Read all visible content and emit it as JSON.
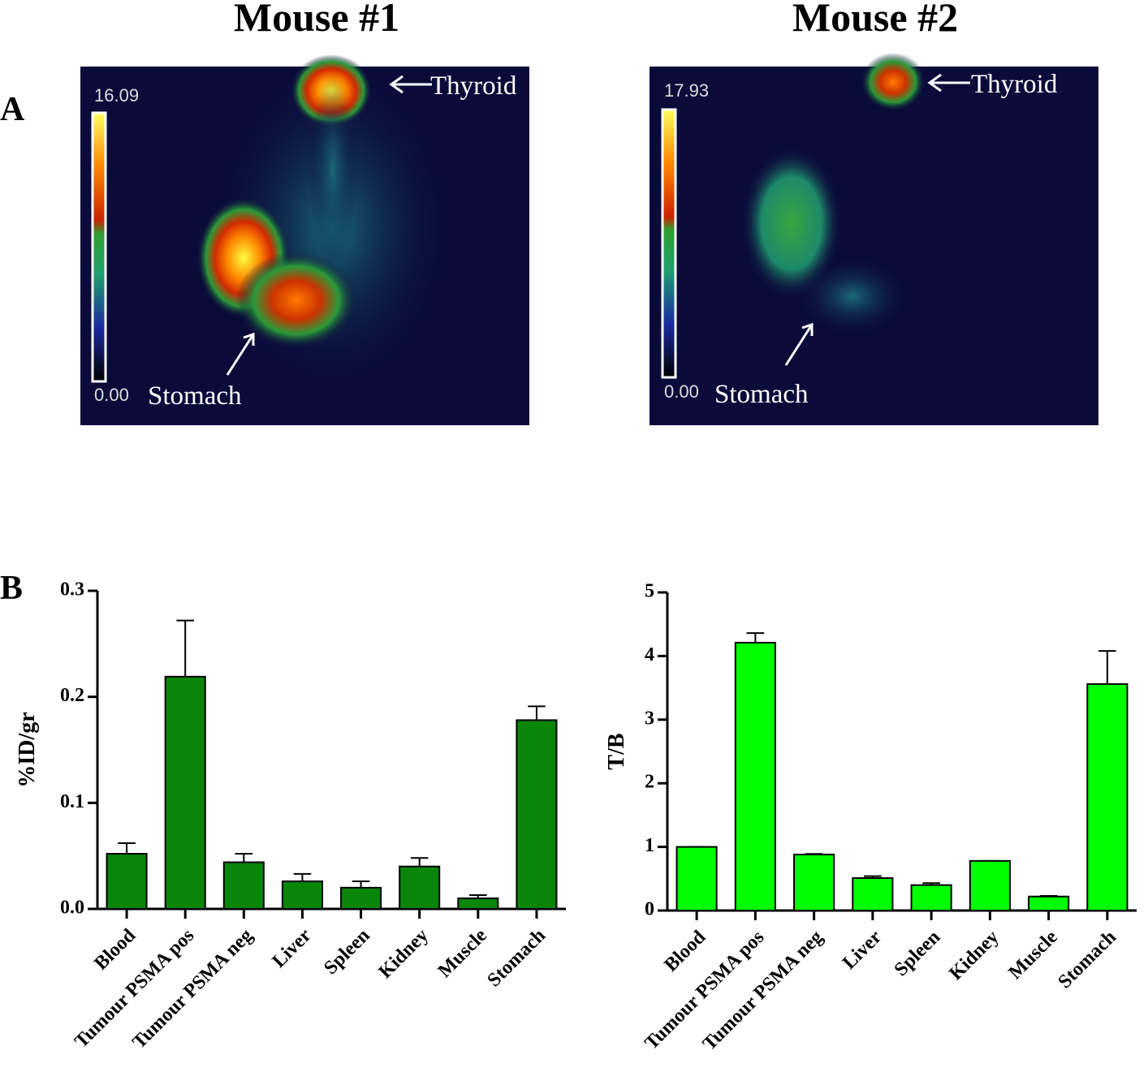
{
  "panel_a": {
    "label": "A",
    "images": [
      {
        "title": "Mouse #1",
        "scale_max": "16.09",
        "scale_min": "0.00",
        "organs": [
          "Thyroid",
          "Stomach"
        ]
      },
      {
        "title": "Mouse #2",
        "scale_max": "17.93",
        "scale_min": "0.00",
        "organs": [
          "Thyroid",
          "Stomach"
        ]
      }
    ]
  },
  "panel_b": {
    "label": "B"
  },
  "chart_data": [
    {
      "type": "bar",
      "ylabel": "%ID/gr",
      "categories": [
        "Blood",
        "Tumour PSMA pos",
        "Tumour PSMA neg",
        "Liver",
        "Spleen",
        "Kidney",
        "Muscle",
        "Stomach"
      ],
      "values": [
        0.052,
        0.219,
        0.044,
        0.026,
        0.02,
        0.04,
        0.01,
        0.178
      ],
      "errors": [
        0.01,
        0.053,
        0.008,
        0.007,
        0.006,
        0.008,
        0.003,
        0.013
      ],
      "color": "#098509",
      "ylim": [
        0,
        0.3
      ],
      "yticks": [
        {
          "value": 0,
          "label": "0.0"
        },
        0.1,
        0.2,
        0.3
      ]
    },
    {
      "type": "bar",
      "ylabel": "T/B",
      "categories": [
        "Blood",
        "Tumour PSMA pos",
        "Tumour PSMA neg",
        "Liver",
        "Spleen",
        "Kidney",
        "Muscle",
        "Stomach"
      ],
      "values": [
        1.0,
        4.21,
        0.88,
        0.51,
        0.4,
        0.78,
        0.22,
        3.56
      ],
      "errors": [
        0,
        0.15,
        0.01,
        0.03,
        0.03,
        0,
        0.01,
        0.52
      ],
      "color": "#00ff00",
      "ylim": [
        0,
        5
      ],
      "yticks": [
        0,
        1,
        2,
        3,
        4,
        5
      ]
    }
  ]
}
